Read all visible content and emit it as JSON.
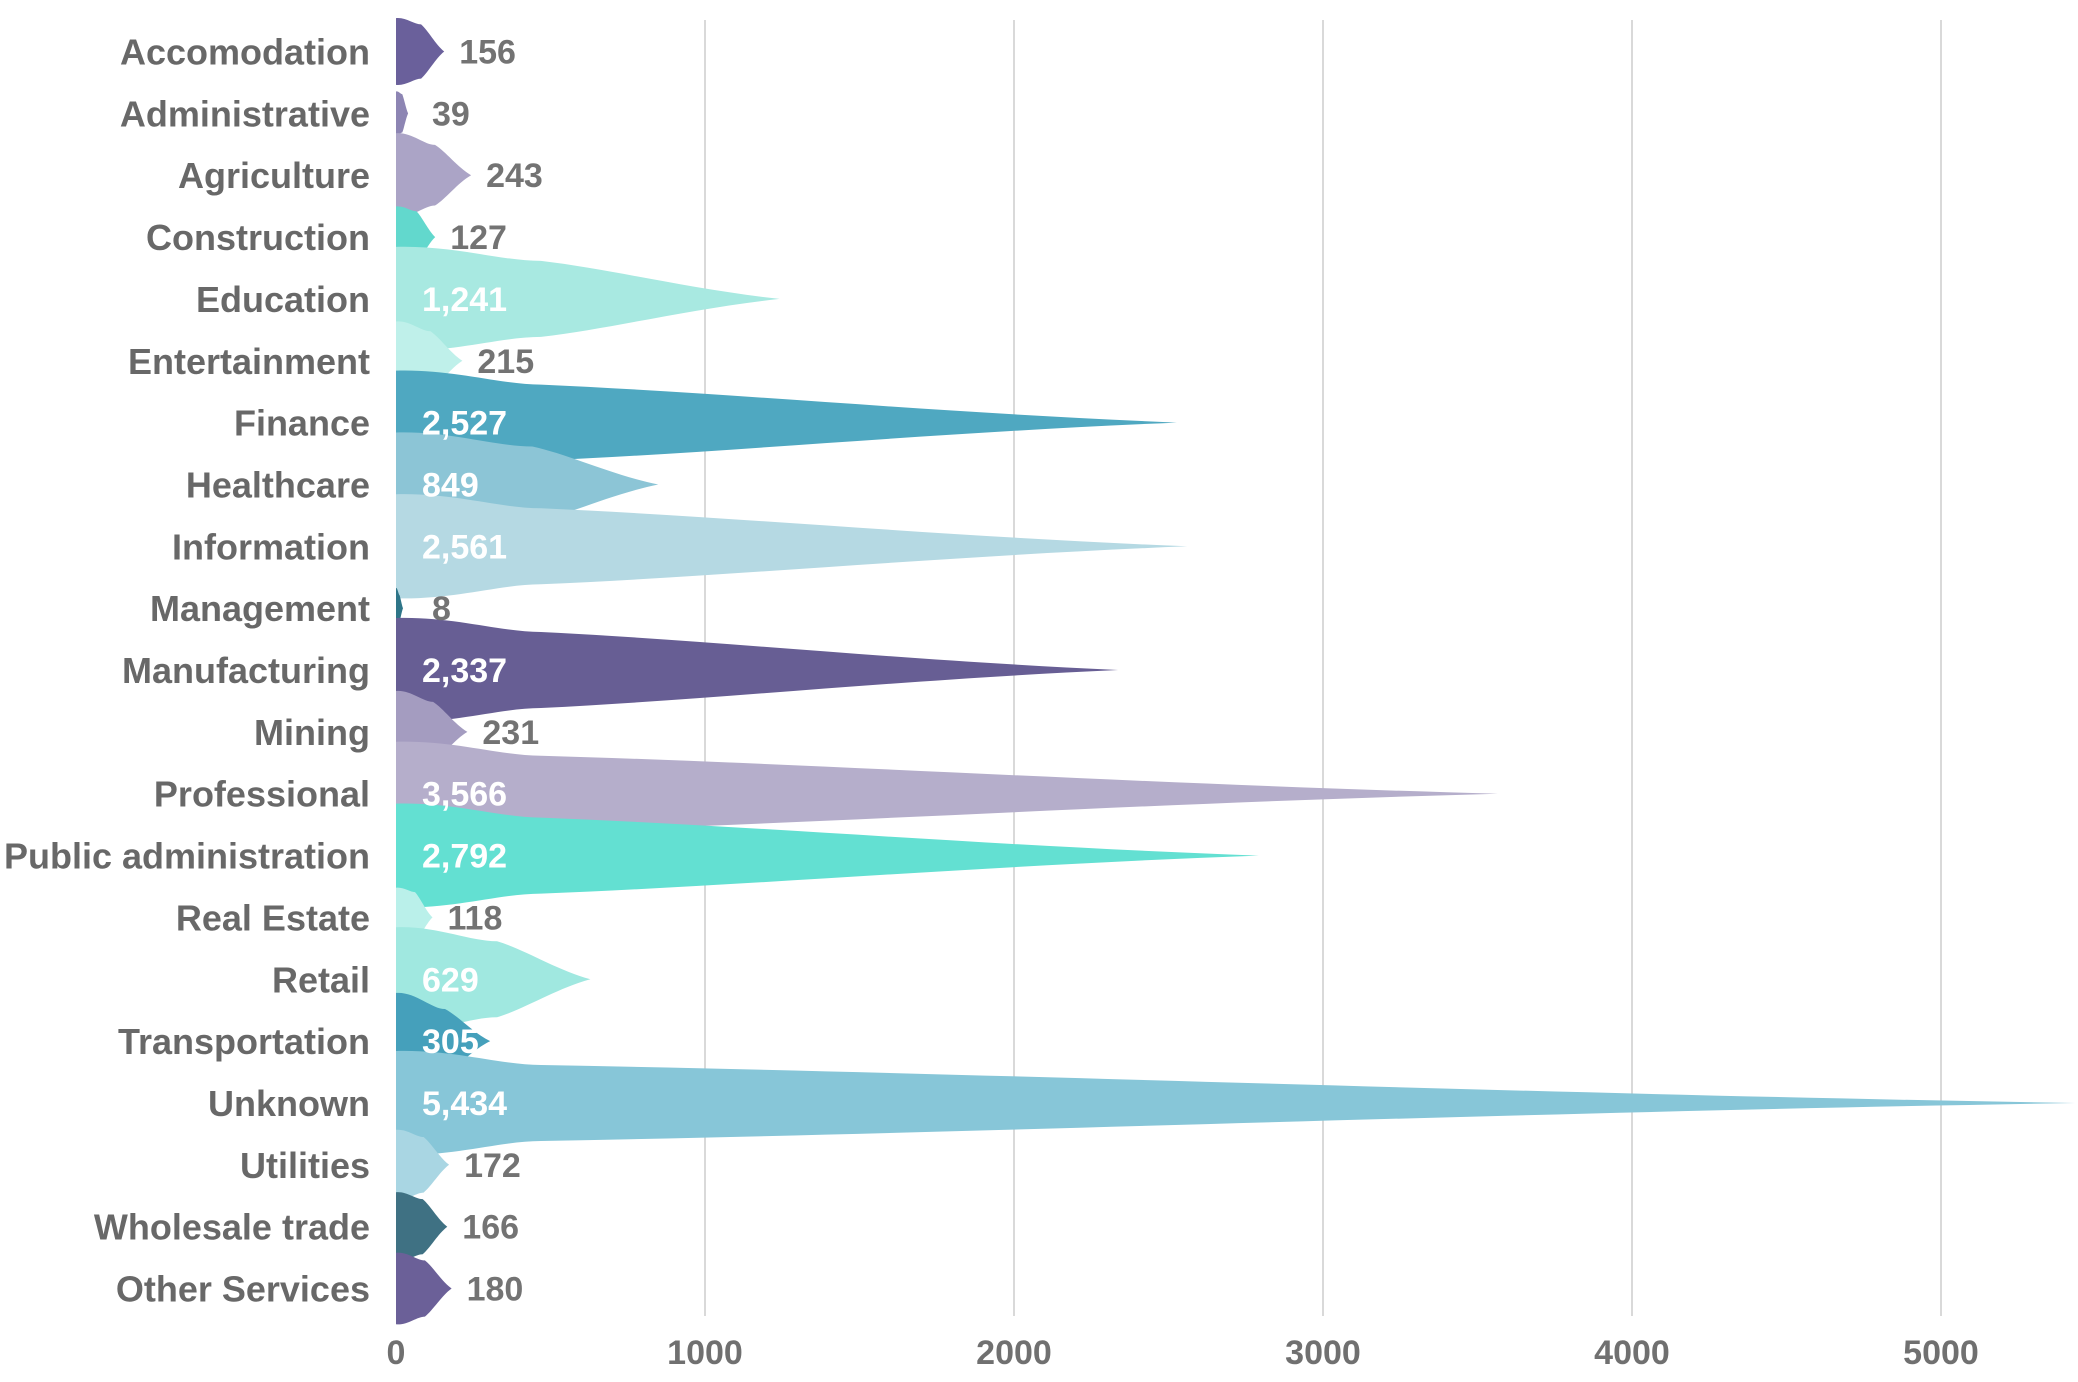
{
  "chart_data": {
    "type": "bar",
    "orientation": "horizontal",
    "title": "",
    "xlabel": "",
    "ylabel": "",
    "categories": [
      "Accomodation",
      "Administrative",
      "Agriculture",
      "Construction",
      "Education",
      "Entertainment",
      "Finance",
      "Healthcare",
      "Information",
      "Management",
      "Manufacturing",
      "Mining",
      "Professional",
      "Public administration",
      "Real Estate",
      "Retail",
      "Transportation",
      "Unknown",
      "Utilities",
      "Wholesale trade",
      "Other Services"
    ],
    "values": [
      156,
      39,
      243,
      127,
      1241,
      215,
      2527,
      849,
      2561,
      8,
      2337,
      231,
      3566,
      2792,
      118,
      629,
      305,
      5434,
      172,
      166,
      180
    ],
    "value_labels": [
      "156",
      "39",
      "243",
      "127",
      "1,241",
      "215",
      "2,527",
      "849",
      "2,561",
      "8",
      "2,337",
      "231",
      "3,566",
      "2,792",
      "118",
      "629",
      "305",
      "5,434",
      "172",
      "166",
      "180"
    ],
    "bar_colors": [
      "#6a609b",
      "#8d85b3",
      "#aba4c6",
      "#62d8cd",
      "#a8e9e1",
      "#bff0ea",
      "#4fa8c1",
      "#8cc5d6",
      "#b5d9e3",
      "#2e7588",
      "#675e94",
      "#a49cc0",
      "#b5aecb",
      "#63e0d2",
      "#baf0ea",
      "#a0e8e0",
      "#45a0bb",
      "#87c6d8",
      "#a9d6e3",
      "#3f7183",
      "#6b6098"
    ],
    "x_ticks": [
      0,
      1000,
      2000,
      3000,
      4000,
      5000
    ],
    "x_tick_labels": [
      "0",
      "1000",
      "2000",
      "3000",
      "4000",
      "5000"
    ],
    "xlim": [
      0,
      5450
    ],
    "grid": "vertical",
    "legend": false,
    "value_label_inside_threshold": 300,
    "colors": {
      "grid_line": "#d9d9d9",
      "category_label": "#686868",
      "tick_label": "#707070",
      "value_label_outside": "#737373",
      "value_label_inside": "#ffffff",
      "background": "#ffffff"
    }
  }
}
